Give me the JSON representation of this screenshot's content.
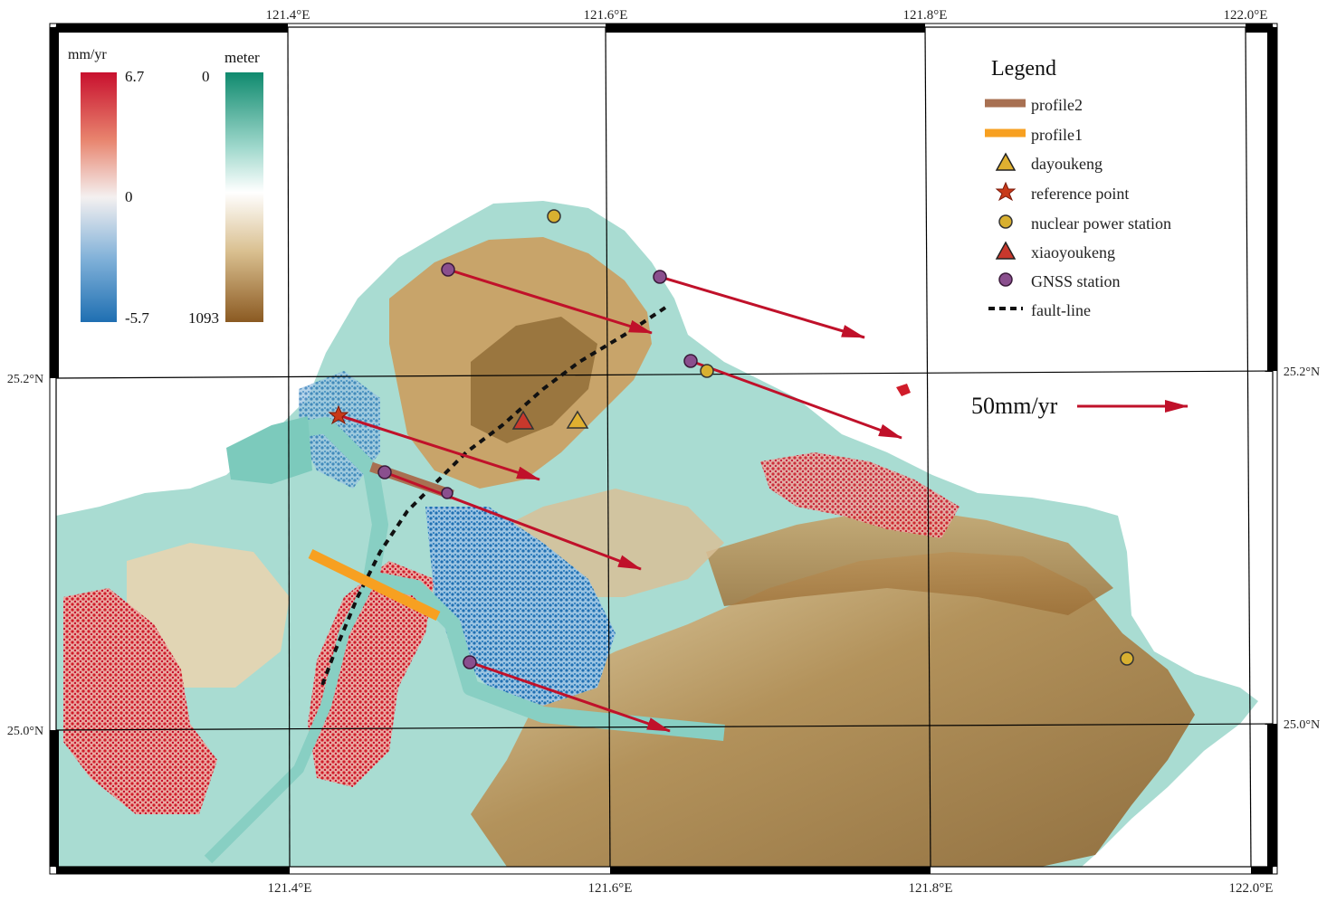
{
  "map": {
    "axes": {
      "longitude_labels": [
        "121.4°E",
        "121.6°E",
        "121.8°E",
        "122.0°E"
      ],
      "latitude_labels": [
        "25.2°N",
        "25.0°N"
      ]
    },
    "velocity_colorbar": {
      "unit": "mm/yr",
      "max_label": "6.7",
      "mid_label": "0",
      "min_label": "-5.7",
      "colors": [
        "#c8102e",
        "#e8846e",
        "#f4f0f0",
        "#7fb0d8",
        "#1f6fb2"
      ]
    },
    "elevation_colorbar": {
      "unit": "meter",
      "top_label": "0",
      "bottom_label": "1093",
      "colors": [
        "#0f8a6e",
        "#9fd8cc",
        "#ffffff",
        "#d9bf8f",
        "#8b5a22"
      ]
    },
    "legend": {
      "title": "Legend",
      "items": [
        {
          "symbol": "line",
          "color": "#a87052",
          "label": "profile2"
        },
        {
          "symbol": "line",
          "color": "#f7a021",
          "label": "profile1"
        },
        {
          "symbol": "triangle",
          "color": "#e0b030",
          "label": "dayoukeng"
        },
        {
          "symbol": "star",
          "color": "#c83a1a",
          "label": "reference point"
        },
        {
          "symbol": "circle",
          "color": "#d8b030",
          "label": "nuclear power station"
        },
        {
          "symbol": "triangle",
          "color": "#c8382c",
          "label": "xiaoyoukeng"
        },
        {
          "symbol": "circle",
          "color": "#8a4f8e",
          "label": "GNSS station"
        },
        {
          "symbol": "dashed",
          "color": "#111111",
          "label": "fault-line"
        }
      ]
    },
    "scale_vector": {
      "label": "50mm/yr",
      "color": "#c0112a"
    }
  }
}
